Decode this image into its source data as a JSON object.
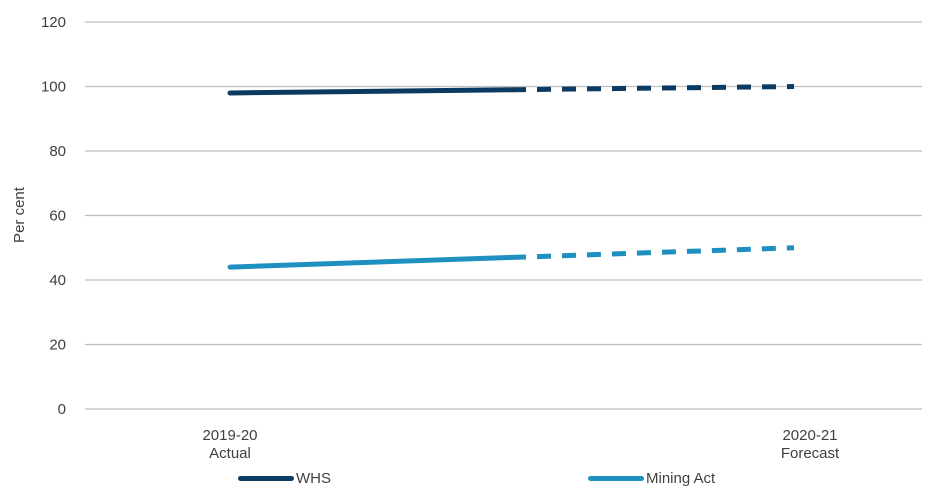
{
  "chart_data": {
    "type": "line",
    "title": "",
    "xlabel": "",
    "ylabel": "Per cent",
    "ylim": [
      0,
      120
    ],
    "yticks": [
      0,
      20,
      40,
      60,
      80,
      100,
      120
    ],
    "categories": [
      {
        "line1": "2019-20",
        "line2": "Actual"
      },
      {
        "line1": "2020-21",
        "line2": "Forecast"
      }
    ],
    "x_values": [
      0,
      0.5,
      1
    ],
    "grid": true,
    "legend_position": "bottom",
    "series": [
      {
        "name": "WHS",
        "color": "#0b3a63",
        "values": [
          98,
          99,
          100
        ],
        "solid_until_index": 1
      },
      {
        "name": "Mining Act",
        "color": "#1e8fbf",
        "values": [
          44,
          47,
          50
        ],
        "solid_until_index": 1
      }
    ]
  }
}
